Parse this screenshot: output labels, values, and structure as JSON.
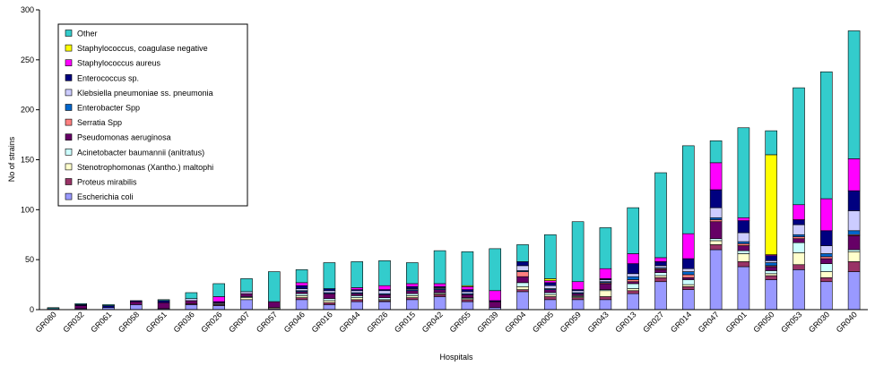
{
  "chart_data": {
    "type": "bar",
    "stacked": true,
    "title": "",
    "xlabel": "Hospitals",
    "ylabel": "No of strains",
    "ylim": [
      0,
      300
    ],
    "yticks": [
      0,
      50,
      100,
      150,
      200,
      250,
      300
    ],
    "grid": false,
    "legend_position": "top-left",
    "categories": [
      "GR080",
      "GR032",
      "GR061",
      "GR058",
      "GR051",
      "GR036",
      "GR026",
      "GR007",
      "GR057",
      "GR046",
      "GR016",
      "GR044",
      "GR026",
      "GR015",
      "GR042",
      "GR055",
      "GR039",
      "GR004",
      "GR005",
      "GR059",
      "GR043",
      "GR013",
      "GR027",
      "GR014",
      "GR047",
      "GR001",
      "GR050",
      "GR053",
      "GR030",
      "GR040"
    ],
    "series": [
      {
        "name": "Escherichia coli",
        "color": "#9999ff",
        "values": [
          1,
          1,
          2,
          5,
          1,
          5,
          4,
          10,
          1,
          10,
          5,
          8,
          8,
          10,
          13,
          8,
          2,
          18,
          10,
          10,
          10,
          16,
          28,
          20,
          60,
          43,
          30,
          40,
          28,
          38
        ]
      },
      {
        "name": "Proteus mirabilis",
        "color": "#993366",
        "values": [
          0,
          0,
          0,
          0,
          0,
          1,
          1,
          0,
          0,
          2,
          2,
          2,
          1,
          2,
          2,
          2,
          0,
          2,
          3,
          2,
          3,
          3,
          4,
          3,
          5,
          5,
          4,
          5,
          4,
          10
        ]
      },
      {
        "name": "Stenotrophomonas (Xantho.) maltophi",
        "color": "#ffffcc",
        "values": [
          0,
          0,
          0,
          0,
          0,
          0,
          0,
          2,
          1,
          2,
          2,
          2,
          1,
          2,
          1,
          1,
          0,
          3,
          2,
          1,
          6,
          2,
          2,
          2,
          4,
          8,
          2,
          12,
          6,
          10
        ]
      },
      {
        "name": "Acinetobacter baumannii (anitratus)",
        "color": "#ccffff",
        "values": [
          0,
          0,
          0,
          0,
          0,
          0,
          1,
          1,
          0,
          2,
          2,
          2,
          2,
          2,
          1,
          1,
          0,
          4,
          2,
          1,
          1,
          5,
          3,
          5,
          2,
          3,
          3,
          10,
          8,
          2
        ]
      },
      {
        "name": "Pseudomonas aeruginosa",
        "color": "#660066",
        "values": [
          0,
          3,
          0,
          3,
          6,
          3,
          1,
          3,
          6,
          2,
          5,
          2,
          3,
          3,
          3,
          3,
          6,
          6,
          3,
          2,
          6,
          2,
          3,
          2,
          17,
          5,
          4,
          4,
          5,
          14
        ]
      },
      {
        "name": "Serratia Spp",
        "color": "#ff8080",
        "values": [
          0,
          0,
          0,
          0,
          0,
          0,
          0,
          0,
          0,
          0,
          0,
          0,
          0,
          0,
          0,
          0,
          0,
          5,
          0,
          0,
          1,
          2,
          1,
          3,
          2,
          2,
          1,
          2,
          2,
          1
        ]
      },
      {
        "name": "Enterobacter Spp",
        "color": "#0066cc",
        "values": [
          0,
          0,
          0,
          0,
          0,
          0,
          0,
          0,
          0,
          1,
          1,
          1,
          1,
          1,
          1,
          1,
          0,
          1,
          1,
          1,
          1,
          3,
          1,
          3,
          2,
          2,
          3,
          2,
          3,
          4
        ]
      },
      {
        "name": "Klebsiella pneumoniae ss. pneumonia",
        "color": "#ccccff",
        "values": [
          0,
          0,
          0,
          0,
          0,
          2,
          0,
          2,
          0,
          2,
          2,
          2,
          3,
          1,
          1,
          2,
          0,
          5,
          3,
          2,
          2,
          3,
          2,
          3,
          10,
          9,
          2,
          10,
          8,
          20
        ]
      },
      {
        "name": "Enterococcus sp.",
        "color": "#000080",
        "values": [
          0,
          1,
          2,
          1,
          2,
          0,
          1,
          0,
          0,
          3,
          2,
          1,
          1,
          2,
          1,
          2,
          1,
          4,
          3,
          1,
          1,
          10,
          4,
          10,
          18,
          12,
          5,
          5,
          15,
          20
        ]
      },
      {
        "name": "Staphylococcus aureus",
        "color": "#ff00ff",
        "values": [
          0,
          0,
          0,
          0,
          0,
          0,
          5,
          0,
          0,
          3,
          0,
          2,
          4,
          3,
          3,
          3,
          10,
          0,
          2,
          8,
          10,
          10,
          4,
          25,
          27,
          3,
          1,
          15,
          32,
          32
        ]
      },
      {
        "name": "Staphylococcus, coagulase negative",
        "color": "#ffff00",
        "values": [
          0,
          0,
          0,
          0,
          0,
          0,
          0,
          0,
          0,
          0,
          0,
          0,
          0,
          0,
          0,
          1,
          0,
          0,
          2,
          0,
          0,
          0,
          0,
          0,
          0,
          0,
          100,
          0,
          0,
          0
        ]
      },
      {
        "name": "Other",
        "color": "#33cccc",
        "values": [
          1,
          1,
          1,
          0,
          1,
          6,
          13,
          13,
          30,
          13,
          26,
          26,
          25,
          21,
          33,
          34,
          42,
          17,
          44,
          60,
          41,
          46,
          85,
          88,
          22,
          90,
          24,
          117,
          127,
          128
        ]
      }
    ]
  }
}
